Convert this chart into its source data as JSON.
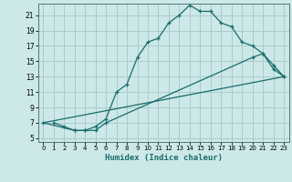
{
  "xlabel": "Humidex (Indice chaleur)",
  "bg_color": "#cce8e8",
  "grid_color": "#aacccc",
  "line_color": "#1a6b6b",
  "xlim": [
    -0.5,
    23.5
  ],
  "ylim": [
    4.5,
    22.5
  ],
  "xticks": [
    0,
    1,
    2,
    3,
    4,
    5,
    6,
    7,
    8,
    9,
    10,
    11,
    12,
    13,
    14,
    15,
    16,
    17,
    18,
    19,
    20,
    21,
    22,
    23
  ],
  "yticks": [
    5,
    7,
    9,
    11,
    13,
    15,
    17,
    19,
    21
  ],
  "line1_x": [
    1,
    2,
    3,
    4,
    5,
    6,
    7,
    8,
    9,
    10,
    11,
    12,
    13,
    14,
    15,
    16,
    17,
    18,
    19,
    20,
    21,
    22,
    23
  ],
  "line1_y": [
    7,
    6.5,
    6,
    6,
    6.5,
    7.5,
    11,
    12,
    15.5,
    17.5,
    18,
    20,
    21,
    22.3,
    21.5,
    21.5,
    20,
    19.5,
    17.5,
    17,
    16,
    14,
    13
  ],
  "line2_x": [
    0,
    3,
    4,
    5,
    6,
    20,
    21,
    22,
    23
  ],
  "line2_y": [
    7,
    6,
    6,
    6,
    7,
    15.5,
    16,
    14.5,
    13
  ],
  "line3_x": [
    0,
    23
  ],
  "line3_y": [
    7,
    13
  ]
}
